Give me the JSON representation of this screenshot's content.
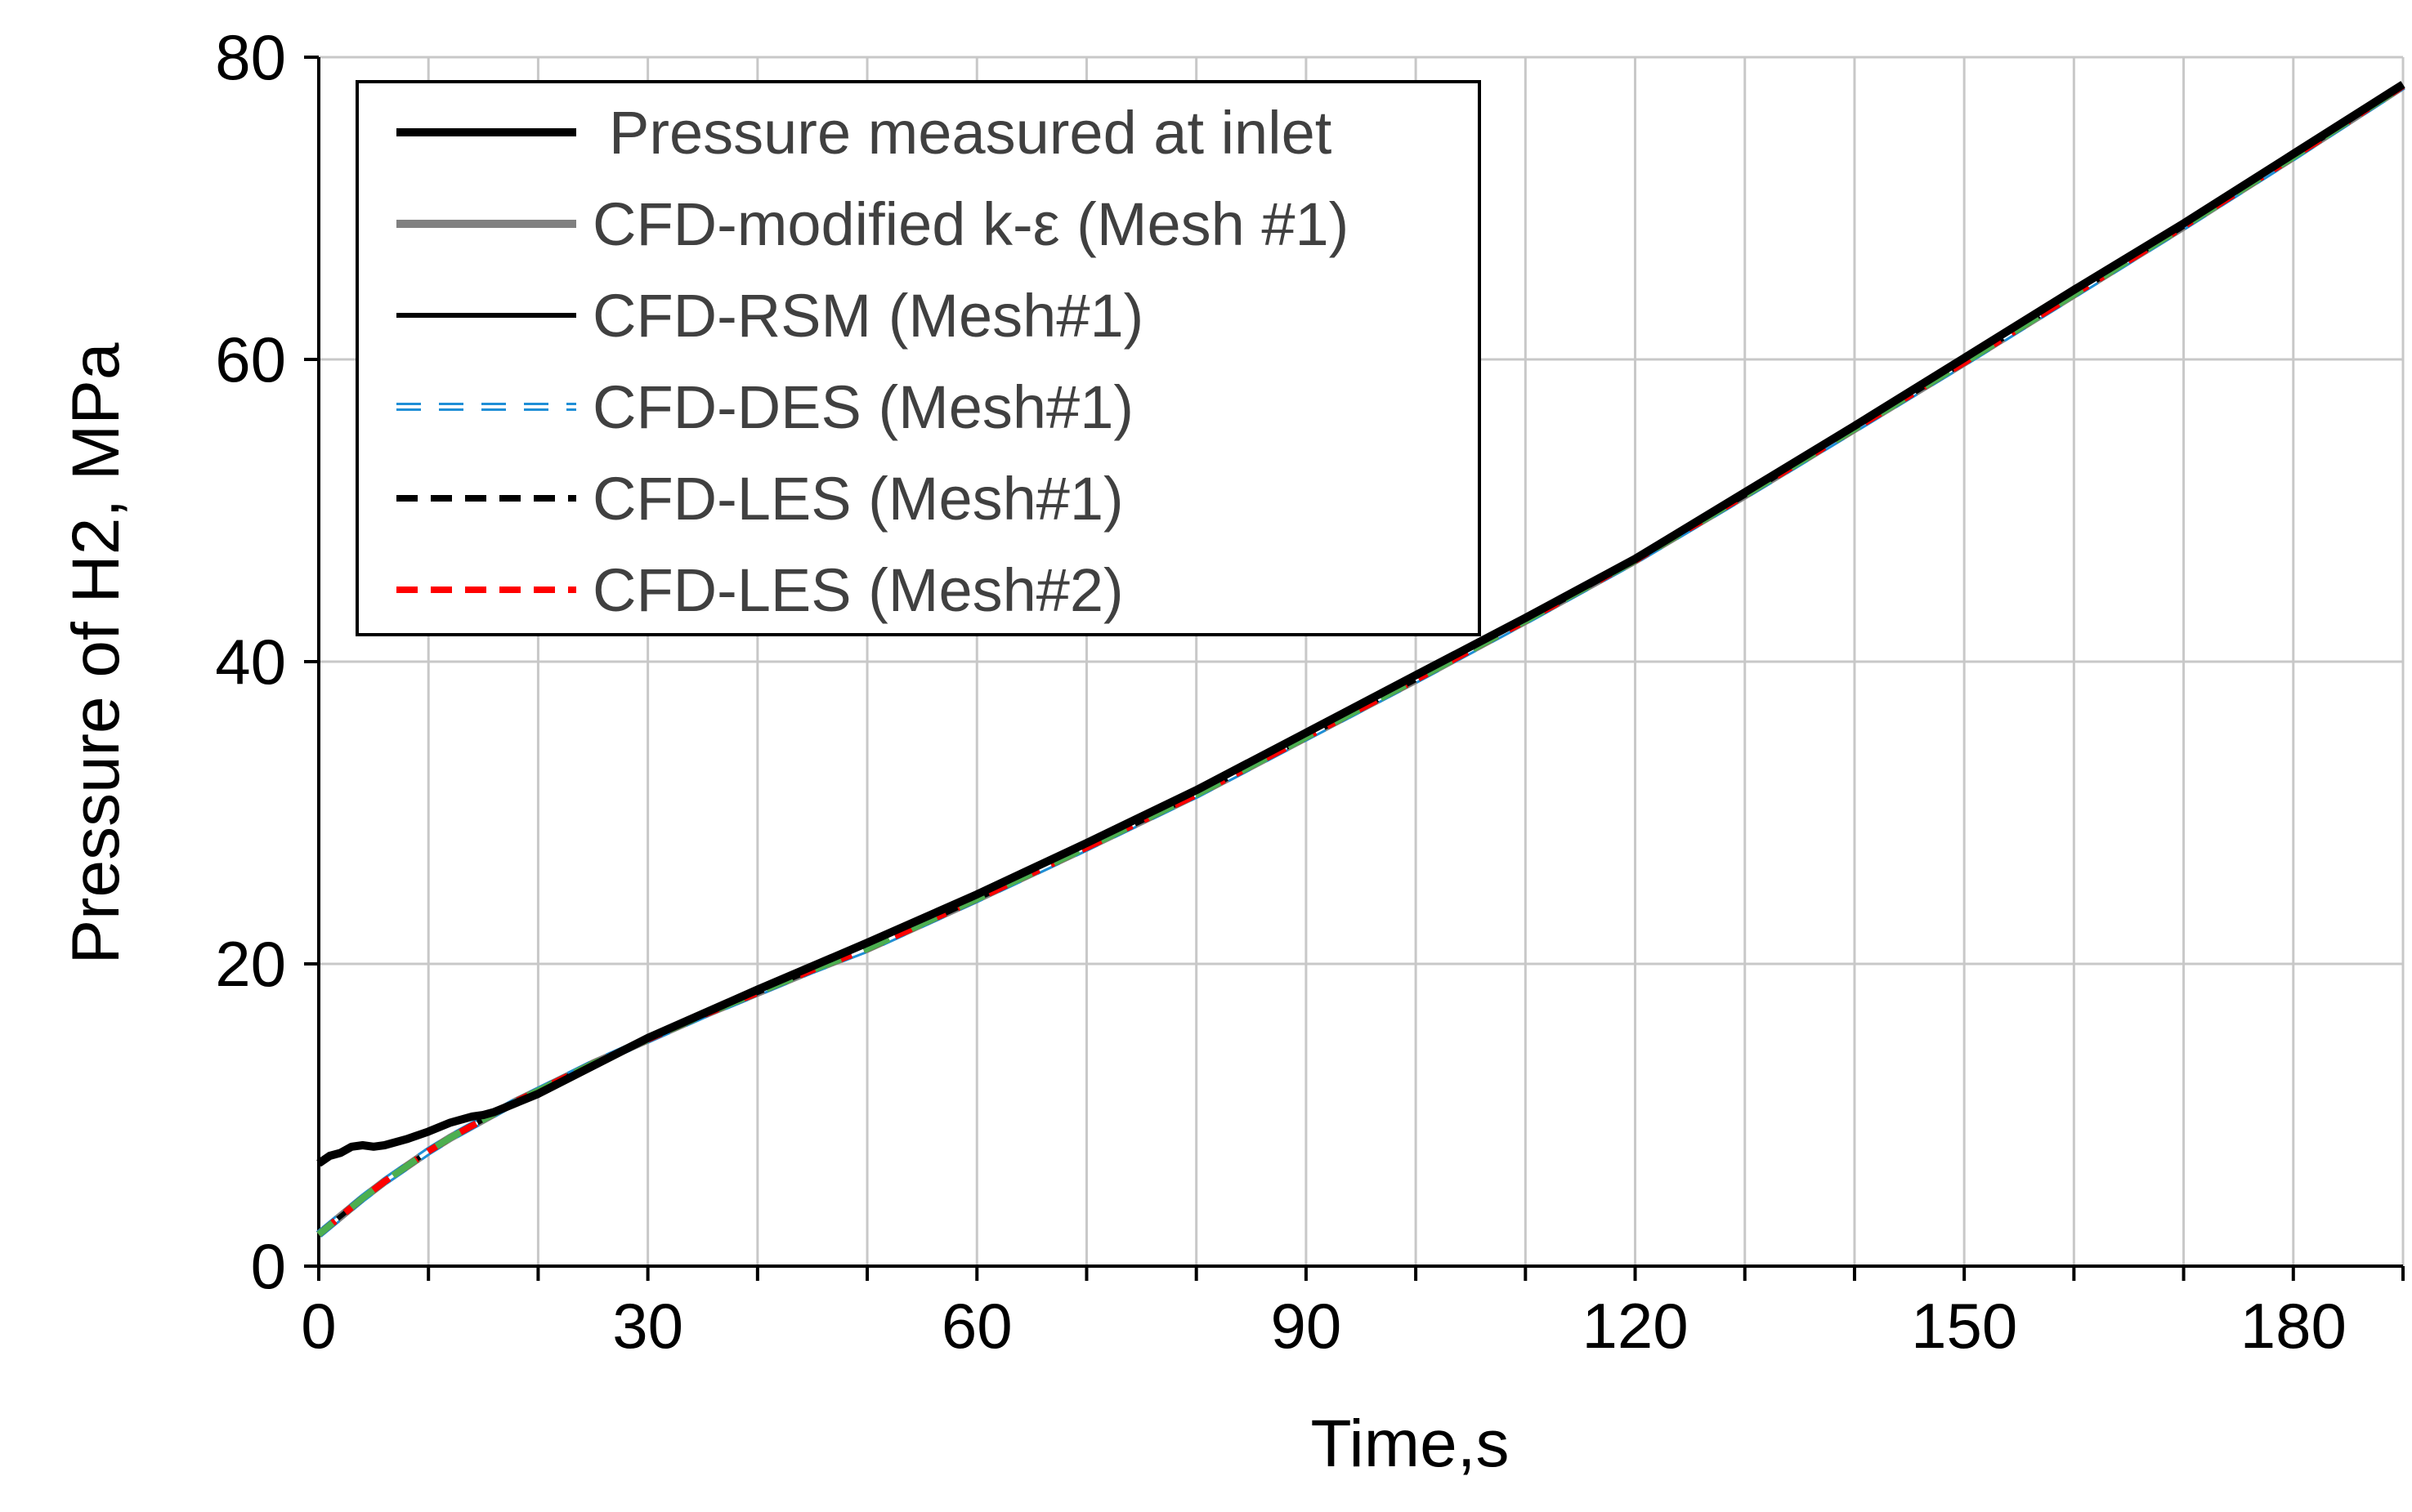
{
  "chart_data": {
    "type": "line",
    "title": "",
    "xlabel": "Time,s",
    "ylabel": "Pressure  of H2, MPa",
    "xlim": [
      0,
      190
    ],
    "ylim": [
      0,
      80
    ],
    "xticks": [
      0,
      30,
      60,
      90,
      120,
      150,
      180
    ],
    "xtick_labels": [
      "0",
      "30",
      "60",
      "90",
      "120",
      "150",
      "180"
    ],
    "x_minor_step": 10,
    "yticks": [
      0,
      20,
      40,
      60,
      80
    ],
    "ytick_labels": [
      "0",
      "20",
      "40",
      "60",
      "80"
    ],
    "grid": true,
    "legend_position": "top-left",
    "series": [
      {
        "name": "Pressure measured at inlet",
        "color": "#000000",
        "style": "solid-thick",
        "x": [
          0,
          1,
          2,
          3,
          4,
          5,
          6,
          8,
          10,
          12,
          14,
          15,
          16,
          20,
          30,
          40,
          50,
          60,
          70,
          80,
          90,
          100,
          110,
          120,
          130,
          140,
          150,
          160,
          170,
          180,
          190
        ],
        "y": [
          6.8,
          7.3,
          7.5,
          7.9,
          8.0,
          7.9,
          8.0,
          8.4,
          8.9,
          9.5,
          9.9,
          10.0,
          10.2,
          11.4,
          15.1,
          18.3,
          21.4,
          24.6,
          28.0,
          31.5,
          35.3,
          39.1,
          42.9,
          46.8,
          51.2,
          55.6,
          60.1,
          64.6,
          69.0,
          73.6,
          78.2
        ]
      },
      {
        "name": "CFD-modified k-ε (Mesh #1)",
        "color": "#808080",
        "style": "solid-thick",
        "x": [
          0,
          2,
          4,
          6,
          8,
          10,
          12,
          14,
          16,
          18,
          20,
          25,
          30,
          35,
          40,
          45,
          50,
          60,
          70,
          80,
          90,
          100,
          110,
          120,
          130,
          140,
          150,
          160,
          170,
          180,
          190
        ],
        "y": [
          2.1,
          3.3,
          4.5,
          5.6,
          6.6,
          7.6,
          8.5,
          9.3,
          10.1,
          10.9,
          11.6,
          13.4,
          15.0,
          16.6,
          18.1,
          19.6,
          21.0,
          24.3,
          27.7,
          31.2,
          35.0,
          38.8,
          42.7,
          46.7,
          51.0,
          55.4,
          59.8,
          64.3,
          68.8,
          73.4,
          78.1
        ]
      },
      {
        "name": "CFD-RSM (Mesh#1)",
        "color": "#000000",
        "style": "solid-thin",
        "x": [
          0,
          2,
          4,
          6,
          8,
          10,
          12,
          14,
          16,
          18,
          20,
          25,
          30,
          35,
          40,
          45,
          50,
          60,
          70,
          80,
          90,
          100,
          110,
          120,
          130,
          140,
          150,
          160,
          170,
          180,
          190
        ],
        "y": [
          2.1,
          3.3,
          4.5,
          5.6,
          6.6,
          7.6,
          8.5,
          9.3,
          10.1,
          10.9,
          11.6,
          13.4,
          15.0,
          16.6,
          18.1,
          19.6,
          21.0,
          24.3,
          27.7,
          31.2,
          35.0,
          38.8,
          42.7,
          46.7,
          51.0,
          55.4,
          59.8,
          64.3,
          68.8,
          73.4,
          78.1
        ]
      },
      {
        "name": "CFD-DES (Mesh#1)",
        "color": "#1f8fd6",
        "style": "dashed-hollow",
        "x": [
          0,
          2,
          4,
          6,
          8,
          10,
          12,
          14,
          16,
          18,
          20,
          25,
          30,
          35,
          40,
          45,
          50,
          60,
          70,
          80,
          90,
          100,
          110,
          120,
          130,
          140,
          150,
          160,
          170,
          180,
          190
        ],
        "y": [
          2.1,
          3.3,
          4.5,
          5.6,
          6.6,
          7.6,
          8.5,
          9.3,
          10.1,
          10.9,
          11.6,
          13.4,
          15.0,
          16.6,
          18.1,
          19.6,
          21.0,
          24.3,
          27.7,
          31.2,
          35.0,
          38.8,
          42.7,
          46.7,
          51.0,
          55.4,
          59.8,
          64.3,
          68.8,
          73.4,
          78.1
        ]
      },
      {
        "name": "CFD-LES (Mesh#1)",
        "color": "#000000",
        "style": "dashed",
        "x": [
          0,
          2,
          4,
          6,
          8,
          10,
          12,
          14,
          16,
          18,
          20,
          25,
          30,
          35,
          40,
          45,
          50,
          60,
          70,
          80,
          90,
          100,
          110,
          120,
          130,
          140,
          150,
          160,
          170,
          180,
          190
        ],
        "y": [
          2.1,
          3.3,
          4.5,
          5.6,
          6.6,
          7.6,
          8.5,
          9.3,
          10.1,
          10.9,
          11.6,
          13.4,
          15.0,
          16.6,
          18.1,
          19.6,
          21.0,
          24.3,
          27.7,
          31.2,
          35.0,
          38.8,
          42.7,
          46.7,
          51.0,
          55.4,
          59.8,
          64.3,
          68.8,
          73.4,
          78.1
        ]
      },
      {
        "name": "CFD-LES (Mesh#2)",
        "color": "#ff0000",
        "style": "dashed",
        "x": [
          0,
          2,
          4,
          6,
          8,
          10,
          12,
          14,
          16,
          18,
          20,
          25,
          30,
          35,
          40,
          45,
          50,
          60,
          70,
          80,
          90,
          100,
          110,
          120,
          130,
          140,
          150,
          160,
          170,
          180,
          190
        ],
        "y": [
          2.1,
          3.3,
          4.5,
          5.6,
          6.6,
          7.6,
          8.5,
          9.3,
          10.1,
          10.9,
          11.6,
          13.4,
          15.0,
          16.6,
          18.1,
          19.6,
          21.0,
          24.3,
          27.7,
          31.2,
          35.0,
          38.8,
          42.7,
          46.7,
          51.0,
          55.4,
          59.8,
          64.3,
          68.8,
          73.4,
          78.1
        ]
      },
      {
        "name": "",
        "color": "#4caf50",
        "style": "dashed-overlay",
        "x": [
          0,
          2,
          4,
          6,
          8,
          10,
          12,
          14,
          16,
          18,
          20,
          25,
          30,
          35,
          40,
          45,
          50,
          60,
          70,
          80,
          90,
          100,
          110,
          120,
          130,
          140,
          150,
          160,
          170,
          180,
          190
        ],
        "y": [
          2.1,
          3.3,
          4.5,
          5.6,
          6.6,
          7.6,
          8.5,
          9.3,
          10.1,
          10.9,
          11.6,
          13.4,
          15.0,
          16.6,
          18.1,
          19.6,
          21.0,
          24.3,
          27.7,
          31.2,
          35.0,
          38.8,
          42.7,
          46.7,
          51.0,
          55.4,
          59.8,
          64.3,
          68.8,
          73.4,
          78.1
        ]
      }
    ],
    "legend_entries": [
      "Pressure measured at inlet",
      "CFD-modified k-ε (Mesh #1)",
      "CFD-RSM (Mesh#1)",
      "CFD-DES (Mesh#1)",
      "CFD-LES (Mesh#1)",
      "CFD-LES (Mesh#2)"
    ]
  }
}
